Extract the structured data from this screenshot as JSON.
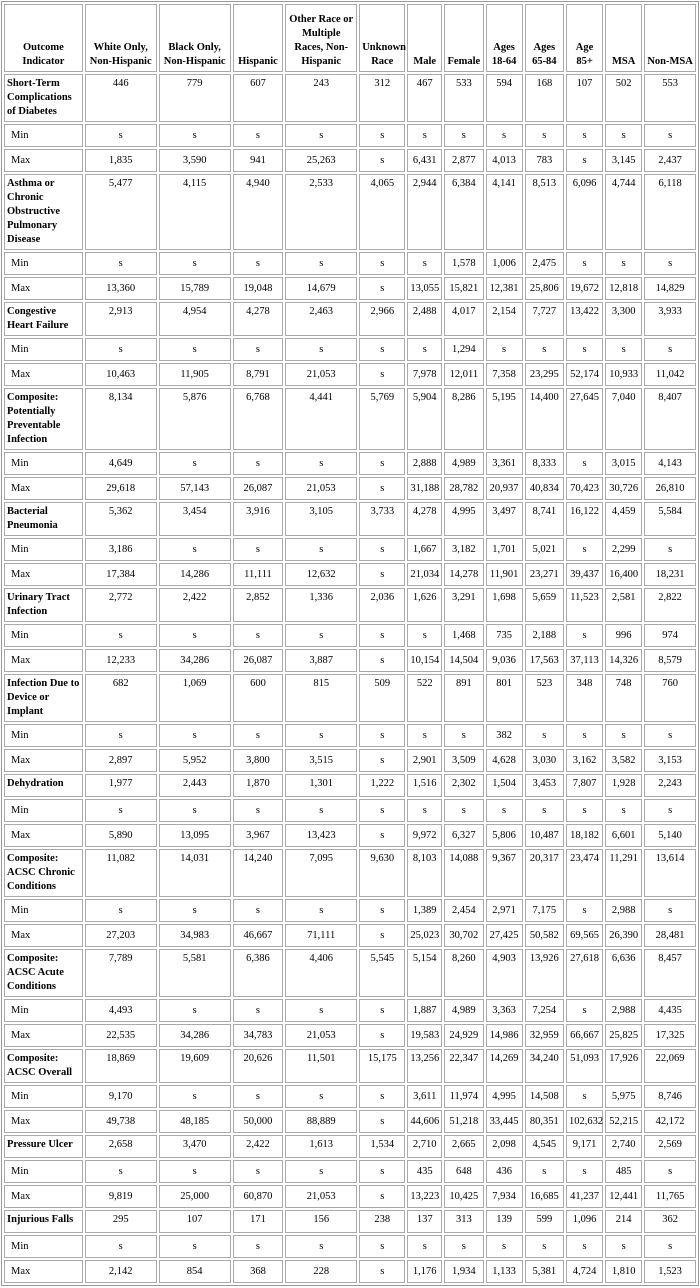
{
  "table": {
    "header": [
      "Outcome Indicator",
      "White Only, Non-Hispanic",
      "Black Only, Non-Hispanic",
      "Hispanic",
      "Other Race or Multiple Races, Non-Hispanic",
      "Unknown Race",
      "Male",
      "Female",
      "Ages 18-64",
      "Ages 65-84",
      "Age 85+",
      "MSA",
      "Non-MSA"
    ],
    "groups": [
      {
        "label": "Short-Term Complications of Diabetes",
        "values": [
          "446",
          "779",
          "607",
          "243",
          "312",
          "467",
          "533",
          "594",
          "168",
          "107",
          "502",
          "553"
        ],
        "rows": [
          {
            "label": "Min",
            "values": [
              "s",
              "s",
              "s",
              "s",
              "s",
              "s",
              "s",
              "s",
              "s",
              "s",
              "s",
              "s"
            ]
          },
          {
            "label": "Max",
            "values": [
              "1,835",
              "3,590",
              "941",
              "25,263",
              "s",
              "6,431",
              "2,877",
              "4,013",
              "783",
              "s",
              "3,145",
              "2,437"
            ]
          }
        ]
      },
      {
        "label": "Asthma or Chronic Obstructive Pulmonary Disease",
        "values": [
          "5,477",
          "4,115",
          "4,940",
          "2,533",
          "4,065",
          "2,944",
          "6,384",
          "4,141",
          "8,513",
          "6,096",
          "4,744",
          "6,118"
        ],
        "rows": [
          {
            "label": "Min",
            "values": [
              "s",
              "s",
              "s",
              "s",
              "s",
              "s",
              "1,578",
              "1,006",
              "2,475",
              "s",
              "s",
              "s"
            ]
          },
          {
            "label": "Max",
            "values": [
              "13,360",
              "15,789",
              "19,048",
              "14,679",
              "s",
              "13,055",
              "15,821",
              "12,381",
              "25,806",
              "19,672",
              "12,818",
              "14,829"
            ]
          }
        ]
      },
      {
        "label": "Congestive Heart Failure",
        "values": [
          "2,913",
          "4,954",
          "4,278",
          "2,463",
          "2,966",
          "2,488",
          "4,017",
          "2,154",
          "7,727",
          "13,422",
          "3,300",
          "3,933"
        ],
        "rows": [
          {
            "label": "Min",
            "values": [
              "s",
              "s",
              "s",
              "s",
              "s",
              "s",
              "1,294",
              "s",
              "s",
              "s",
              "s",
              "s"
            ]
          },
          {
            "label": "Max",
            "values": [
              "10,463",
              "11,905",
              "8,791",
              "21,053",
              "s",
              "7,978",
              "12,011",
              "7,358",
              "23,295",
              "52,174",
              "10,933",
              "11,042"
            ]
          }
        ]
      },
      {
        "label": "Composite: Potentially Preventable Infection",
        "values": [
          "8,134",
          "5,876",
          "6,768",
          "4,441",
          "5,769",
          "5,904",
          "8,286",
          "5,195",
          "14,400",
          "27,645",
          "7,040",
          "8,407"
        ],
        "rows": [
          {
            "label": "Min",
            "values": [
              "4,649",
              "s",
              "s",
              "s",
              "s",
              "2,888",
              "4,989",
              "3,361",
              "8,333",
              "s",
              "3,015",
              "4,143"
            ]
          },
          {
            "label": "Max",
            "values": [
              "29,618",
              "57,143",
              "26,087",
              "21,053",
              "s",
              "31,188",
              "28,782",
              "20,937",
              "40,834",
              "70,423",
              "30,726",
              "26,810"
            ]
          }
        ]
      },
      {
        "label": "Bacterial Pneumonia",
        "values": [
          "5,362",
          "3,454",
          "3,916",
          "3,105",
          "3,733",
          "4,278",
          "4,995",
          "3,497",
          "8,741",
          "16,122",
          "4,459",
          "5,584"
        ],
        "rows": [
          {
            "label": "Min",
            "values": [
              "3,186",
              "s",
              "s",
              "s",
              "s",
              "1,667",
              "3,182",
              "1,701",
              "5,021",
              "s",
              "2,299",
              "s"
            ]
          },
          {
            "label": "Max",
            "values": [
              "17,384",
              "14,286",
              "11,111",
              "12,632",
              "s",
              "21,034",
              "14,278",
              "11,901",
              "23,271",
              "39,437",
              "16,400",
              "18,231"
            ]
          }
        ]
      },
      {
        "label": "Urinary Tract Infection",
        "values": [
          "2,772",
          "2,422",
          "2,852",
          "1,336",
          "2,036",
          "1,626",
          "3,291",
          "1,698",
          "5,659",
          "11,523",
          "2,581",
          "2,822"
        ],
        "rows": [
          {
            "label": "Min",
            "values": [
              "s",
              "s",
              "s",
              "s",
              "s",
              "s",
              "1,468",
              "735",
              "2,188",
              "s",
              "996",
              "974"
            ]
          },
          {
            "label": "Max",
            "values": [
              "12,233",
              "34,286",
              "26,087",
              "3,887",
              "s",
              "10,154",
              "14,504",
              "9,036",
              "17,563",
              "37,113",
              "14,326",
              "8,579"
            ]
          }
        ]
      },
      {
        "label": "Infection Due to Device or Implant",
        "values": [
          "682",
          "1,069",
          "600",
          "815",
          "509",
          "522",
          "891",
          "801",
          "523",
          "348",
          "748",
          "760"
        ],
        "rows": [
          {
            "label": "Min",
            "values": [
              "s",
              "s",
              "s",
              "s",
              "s",
              "s",
              "s",
              "382",
              "s",
              "s",
              "s",
              "s"
            ]
          },
          {
            "label": "Max",
            "values": [
              "2,897",
              "5,952",
              "3,800",
              "3,515",
              "s",
              "2,901",
              "3,509",
              "4,628",
              "3,030",
              "3,162",
              "3,582",
              "3,153"
            ]
          }
        ]
      },
      {
        "label": "Dehydration",
        "values": [
          "1,977",
          "2,443",
          "1,870",
          "1,301",
          "1,222",
          "1,516",
          "2,302",
          "1,504",
          "3,453",
          "7,807",
          "1,928",
          "2,243"
        ],
        "rows": [
          {
            "label": "Min",
            "values": [
              "s",
              "s",
              "s",
              "s",
              "s",
              "s",
              "s",
              "s",
              "s",
              "s",
              "s",
              "s"
            ]
          },
          {
            "label": "Max",
            "values": [
              "5,890",
              "13,095",
              "3,967",
              "13,423",
              "s",
              "9,972",
              "6,327",
              "5,806",
              "10,487",
              "18,182",
              "6,601",
              "5,140"
            ]
          }
        ]
      },
      {
        "label": "Composite: ACSC Chronic Conditions",
        "values": [
          "11,082",
          "14,031",
          "14,240",
          "7,095",
          "9,630",
          "8,103",
          "14,088",
          "9,367",
          "20,317",
          "23,474",
          "11,291",
          "13,614"
        ],
        "rows": [
          {
            "label": "Min",
            "values": [
              "s",
              "s",
              "s",
              "s",
              "s",
              "1,389",
              "2,454",
              "2,971",
              "7,175",
              "s",
              "2,988",
              "s"
            ]
          },
          {
            "label": "Max",
            "values": [
              "27,203",
              "34,983",
              "46,667",
              "71,111",
              "s",
              "25,023",
              "30,702",
              "27,425",
              "50,582",
              "69,565",
              "26,390",
              "28,481"
            ]
          }
        ]
      },
      {
        "label": "Composite: ACSC Acute Conditions",
        "values": [
          "7,789",
          "5,581",
          "6,386",
          "4,406",
          "5,545",
          "5,154",
          "8,260",
          "4,903",
          "13,926",
          "27,618",
          "6,636",
          "8,457"
        ],
        "rows": [
          {
            "label": "Min",
            "values": [
              "4,493",
              "s",
              "s",
              "s",
              "s",
              "1,887",
              "4,989",
              "3,363",
              "7,254",
              "s",
              "2,988",
              "4,435"
            ]
          },
          {
            "label": "Max",
            "values": [
              "22,535",
              "34,286",
              "34,783",
              "21,053",
              "s",
              "19,583",
              "24,929",
              "14,986",
              "32,959",
              "66,667",
              "25,825",
              "17,325"
            ]
          }
        ]
      },
      {
        "label": "Composite: ACSC Overall",
        "values": [
          "18,869",
          "19,609",
          "20,626",
          "11,501",
          "15,175",
          "13,256",
          "22,347",
          "14,269",
          "34,240",
          "51,093",
          "17,926",
          "22,069"
        ],
        "rows": [
          {
            "label": "Min",
            "values": [
              "9,170",
              "s",
              "s",
              "s",
              "s",
              "3,611",
              "11,974",
              "4,995",
              "14,508",
              "s",
              "5,975",
              "8,746"
            ]
          },
          {
            "label": "Max",
            "values": [
              "49,738",
              "48,185",
              "50,000",
              "88,889",
              "s",
              "44,606",
              "51,218",
              "33,445",
              "80,351",
              "102,632",
              "52,215",
              "42,172"
            ]
          }
        ]
      },
      {
        "label": "Pressure Ulcer",
        "values": [
          "2,658",
          "3,470",
          "2,422",
          "1,613",
          "1,534",
          "2,710",
          "2,665",
          "2,098",
          "4,545",
          "9,171",
          "2,740",
          "2,569"
        ],
        "rows": [
          {
            "label": "Min",
            "values": [
              "s",
              "s",
              "s",
              "s",
              "s",
              "435",
              "648",
              "436",
              "s",
              "s",
              "485",
              "s"
            ]
          },
          {
            "label": "Max",
            "values": [
              "9,819",
              "25,000",
              "60,870",
              "21,053",
              "s",
              "13,223",
              "10,425",
              "7,934",
              "16,685",
              "41,237",
              "12,441",
              "11,765"
            ]
          }
        ]
      },
      {
        "label": "Injurious Falls",
        "values": [
          "295",
          "107",
          "171",
          "156",
          "238",
          "137",
          "313",
          "139",
          "599",
          "1,096",
          "214",
          "362"
        ],
        "rows": [
          {
            "label": "Min",
            "values": [
              "s",
              "s",
              "s",
              "s",
              "s",
              "s",
              "s",
              "s",
              "s",
              "s",
              "s",
              "s"
            ]
          },
          {
            "label": "Max",
            "values": [
              "2,142",
              "854",
              "368",
              "228",
              "s",
              "1,176",
              "1,934",
              "1,133",
              "5,381",
              "4,724",
              "1,810",
              "1,523"
            ]
          }
        ]
      }
    ]
  }
}
